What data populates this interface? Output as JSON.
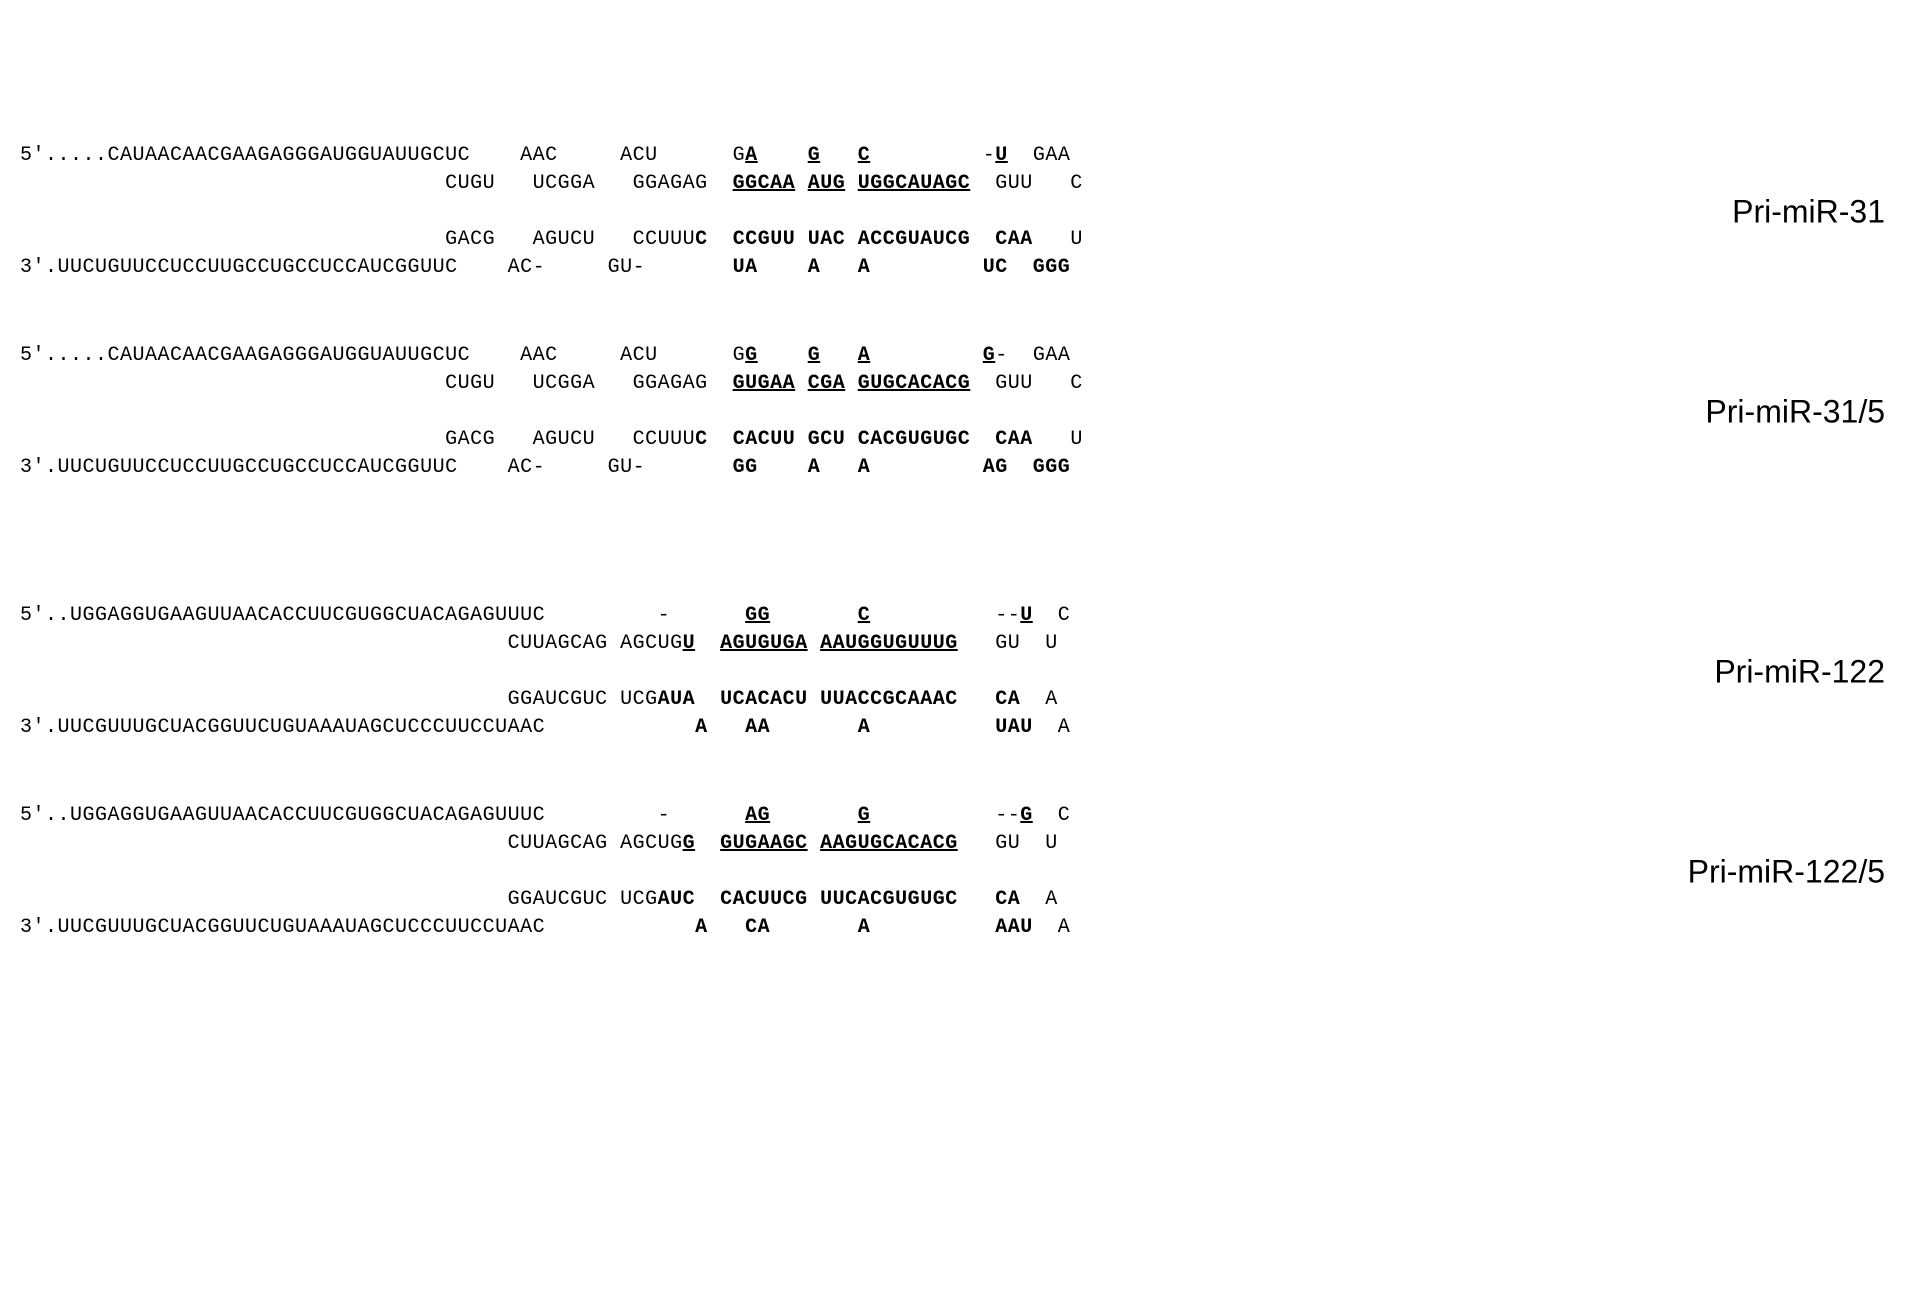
{
  "structures": [
    {
      "name": "Pri-miR-31",
      "label": "Pri-miR-31",
      "gap_class": "",
      "rows": [
        {
          "prefix": "5'.....CAUAACAACGAAGAGGGAUGGUAUUGCUC",
          "segs": [
            {
              "t": "    "
            },
            {
              "t": "AAC"
            },
            {
              "t": "     "
            },
            {
              "t": "ACU"
            },
            {
              "t": "      "
            },
            {
              "t": "G"
            },
            {
              "t": "A",
              "u": true,
              "b": true
            },
            {
              "t": "    "
            },
            {
              "t": "G",
              "u": true,
              "b": true
            },
            {
              "t": "   "
            },
            {
              "t": "C",
              "u": true,
              "b": true
            },
            {
              "t": "         "
            },
            {
              "t": "-"
            },
            {
              "t": "U",
              "u": true,
              "b": true
            },
            {
              "t": "  GAA"
            }
          ]
        },
        {
          "prefix": "                                  ",
          "segs": [
            {
              "t": "CUGU"
            },
            {
              "t": "   "
            },
            {
              "t": "UCGGA"
            },
            {
              "t": "   "
            },
            {
              "t": "GGAGAG  "
            },
            {
              "t": "GGCAA",
              "u": true,
              "b": true
            },
            {
              "t": " "
            },
            {
              "t": "AUG",
              "u": true,
              "b": true
            },
            {
              "t": " "
            },
            {
              "t": "UGGCAUAGC",
              "u": true,
              "b": true
            },
            {
              "t": "  GUU   C"
            }
          ]
        },
        {
          "prefix": "",
          "segs": [
            {
              "t": " "
            }
          ]
        },
        {
          "prefix": "                                  ",
          "segs": [
            {
              "t": "GACG"
            },
            {
              "t": "   "
            },
            {
              "t": "AGUCU"
            },
            {
              "t": "   "
            },
            {
              "t": "CCUUU"
            },
            {
              "t": "C",
              "b": true
            },
            {
              "t": "  "
            },
            {
              "t": "CCGUU",
              "b": true
            },
            {
              "t": " "
            },
            {
              "t": "UAC",
              "b": true
            },
            {
              "t": " "
            },
            {
              "t": "ACCGUAUCG",
              "b": true
            },
            {
              "t": "  "
            },
            {
              "t": "CAA",
              "b": true
            },
            {
              "t": "   U"
            }
          ]
        },
        {
          "prefix": "3'.UUCUGUUCCUCCUUGCCUGCCUCCAUCGGUUC",
          "segs": [
            {
              "t": "    "
            },
            {
              "t": "AC-"
            },
            {
              "t": "     "
            },
            {
              "t": "GU-"
            },
            {
              "t": "       "
            },
            {
              "t": "UA",
              "b": true
            },
            {
              "t": "    "
            },
            {
              "t": "A",
              "b": true
            },
            {
              "t": "   "
            },
            {
              "t": "A",
              "b": true
            },
            {
              "t": "         "
            },
            {
              "t": "UC",
              "b": true
            },
            {
              "t": "  "
            },
            {
              "t": "GGG",
              "b": true
            }
          ]
        }
      ]
    },
    {
      "name": "Pri-miR-31/5",
      "label": "Pri-miR-31/5",
      "gap_class": "large-gap",
      "rows": [
        {
          "prefix": "5'.....CAUAACAACGAAGAGGGAUGGUAUUGCUC",
          "segs": [
            {
              "t": "    "
            },
            {
              "t": "AAC"
            },
            {
              "t": "     "
            },
            {
              "t": "ACU"
            },
            {
              "t": "      "
            },
            {
              "t": "G"
            },
            {
              "t": "G",
              "u": true,
              "b": true
            },
            {
              "t": "    "
            },
            {
              "t": "G",
              "u": true,
              "b": true
            },
            {
              "t": "   "
            },
            {
              "t": "A",
              "u": true,
              "b": true
            },
            {
              "t": "         "
            },
            {
              "t": "G",
              "u": true,
              "b": true
            },
            {
              "t": "-"
            },
            {
              "t": "  GAA"
            }
          ]
        },
        {
          "prefix": "                                  ",
          "segs": [
            {
              "t": "CUGU"
            },
            {
              "t": "   "
            },
            {
              "t": "UCGGA"
            },
            {
              "t": "   "
            },
            {
              "t": "GGAGAG  "
            },
            {
              "t": "GUGAA",
              "u": true,
              "b": true
            },
            {
              "t": " "
            },
            {
              "t": "CGA",
              "u": true,
              "b": true
            },
            {
              "t": " "
            },
            {
              "t": "GUGCACACG",
              "u": true,
              "b": true
            },
            {
              "t": "  GUU   C"
            }
          ]
        },
        {
          "prefix": "",
          "segs": [
            {
              "t": " "
            }
          ]
        },
        {
          "prefix": "                                  ",
          "segs": [
            {
              "t": "GACG"
            },
            {
              "t": "   "
            },
            {
              "t": "AGUCU"
            },
            {
              "t": "   "
            },
            {
              "t": "CCUUU"
            },
            {
              "t": "C",
              "b": true
            },
            {
              "t": "  "
            },
            {
              "t": "CACUU",
              "b": true
            },
            {
              "t": " "
            },
            {
              "t": "GCU",
              "b": true
            },
            {
              "t": " "
            },
            {
              "t": "CACGUGUGC",
              "b": true
            },
            {
              "t": "  "
            },
            {
              "t": "CAA",
              "b": true
            },
            {
              "t": "   U"
            }
          ]
        },
        {
          "prefix": "3'.UUCUGUUCCUCCUUGCCUGCCUCCAUCGGUUC",
          "segs": [
            {
              "t": "    "
            },
            {
              "t": "AC-"
            },
            {
              "t": "     "
            },
            {
              "t": "GU-"
            },
            {
              "t": "       "
            },
            {
              "t": "GG",
              "b": true
            },
            {
              "t": "    "
            },
            {
              "t": "A",
              "b": true
            },
            {
              "t": "   "
            },
            {
              "t": "A",
              "b": true
            },
            {
              "t": "         "
            },
            {
              "t": "AG",
              "b": true
            },
            {
              "t": "  "
            },
            {
              "t": "GGG",
              "b": true
            }
          ]
        }
      ]
    },
    {
      "name": "Pri-miR-122",
      "label": "Pri-miR-122",
      "gap_class": "",
      "rows": [
        {
          "prefix": "5'..UGGAGGUGAAGUUAACACCUUCGUGGCUACAGAGUUUC",
          "segs": [
            {
              "t": "         "
            },
            {
              "t": "-"
            },
            {
              "t": "      "
            },
            {
              "t": "GG",
              "u": true,
              "b": true
            },
            {
              "t": "       "
            },
            {
              "t": "C",
              "u": true,
              "b": true
            },
            {
              "t": "          "
            },
            {
              "t": "--"
            },
            {
              "t": "U",
              "u": true,
              "b": true
            },
            {
              "t": "  C"
            }
          ]
        },
        {
          "prefix": "                                       ",
          "segs": [
            {
              "t": "CUUAGCAG AGCUG"
            },
            {
              "t": "U",
              "u": true,
              "b": true
            },
            {
              "t": "  "
            },
            {
              "t": "AGUGUGA",
              "u": true,
              "b": true
            },
            {
              "t": " "
            },
            {
              "t": "AAUGGUGUUUG",
              "u": true,
              "b": true
            },
            {
              "t": "   GU  U"
            }
          ]
        },
        {
          "prefix": "",
          "segs": [
            {
              "t": " "
            }
          ]
        },
        {
          "prefix": "                                       ",
          "segs": [
            {
              "t": "GGAUCGUC UCG"
            },
            {
              "t": "AUA",
              "b": true
            },
            {
              "t": "  "
            },
            {
              "t": "UCACACU",
              "b": true
            },
            {
              "t": " "
            },
            {
              "t": "UUACCGCAAAC",
              "b": true
            },
            {
              "t": "   "
            },
            {
              "t": "CA",
              "b": true
            },
            {
              "t": "  A"
            }
          ]
        },
        {
          "prefix": "3'.UUCGUUUGCUACGGUUCUGUAAAUAGCUCCCUUCCUAAC",
          "segs": [
            {
              "t": "            "
            },
            {
              "t": "A",
              "b": true
            },
            {
              "t": "   "
            },
            {
              "t": "AA",
              "b": true
            },
            {
              "t": "       "
            },
            {
              "t": "A",
              "b": true
            },
            {
              "t": "          "
            },
            {
              "t": "UAU",
              "b": true
            },
            {
              "t": "  A"
            }
          ]
        }
      ]
    },
    {
      "name": "Pri-miR-122/5",
      "label": "Pri-miR-122/5",
      "gap_class": "",
      "rows": [
        {
          "prefix": "5'..UGGAGGUGAAGUUAACACCUUCGUGGCUACAGAGUUUC",
          "segs": [
            {
              "t": "         "
            },
            {
              "t": "-"
            },
            {
              "t": "      "
            },
            {
              "t": "AG",
              "u": true,
              "b": true
            },
            {
              "t": "       "
            },
            {
              "t": "G",
              "u": true,
              "b": true
            },
            {
              "t": "          "
            },
            {
              "t": "--"
            },
            {
              "t": "G",
              "u": true,
              "b": true
            },
            {
              "t": "  C"
            }
          ]
        },
        {
          "prefix": "                                       ",
          "segs": [
            {
              "t": "CUUAGCAG AGCUG"
            },
            {
              "t": "G",
              "u": true,
              "b": true
            },
            {
              "t": "  "
            },
            {
              "t": "GUGAAGC",
              "u": true,
              "b": true
            },
            {
              "t": " "
            },
            {
              "t": "AAGUGCACACG",
              "u": true,
              "b": true
            },
            {
              "t": "   GU  U"
            }
          ]
        },
        {
          "prefix": "",
          "segs": [
            {
              "t": " "
            }
          ]
        },
        {
          "prefix": "                                       ",
          "segs": [
            {
              "t": "GGAUCGUC UCG"
            },
            {
              "t": "AUC",
              "b": true
            },
            {
              "t": "  "
            },
            {
              "t": "CACUUCG",
              "b": true
            },
            {
              "t": " "
            },
            {
              "t": "UUCACGUGUGC",
              "b": true
            },
            {
              "t": "   "
            },
            {
              "t": "CA",
              "b": true
            },
            {
              "t": "  A"
            }
          ]
        },
        {
          "prefix": "3'.UUCGUUUGCUACGGUUCUGUAAAUAGCUCCCUUCCUAAC",
          "segs": [
            {
              "t": "            "
            },
            {
              "t": "A",
              "b": true
            },
            {
              "t": "   "
            },
            {
              "t": "CA",
              "b": true
            },
            {
              "t": "       "
            },
            {
              "t": "A",
              "b": true
            },
            {
              "t": "          "
            },
            {
              "t": "AAU",
              "b": true
            },
            {
              "t": "  A"
            }
          ]
        }
      ]
    }
  ],
  "styling": {
    "font_family": "Courier New, monospace",
    "label_font_family": "Helvetica, Arial, sans-serif",
    "font_size_base": 20,
    "font_size_label": 32,
    "background_color": "#ffffff",
    "text_color": "#000000"
  }
}
